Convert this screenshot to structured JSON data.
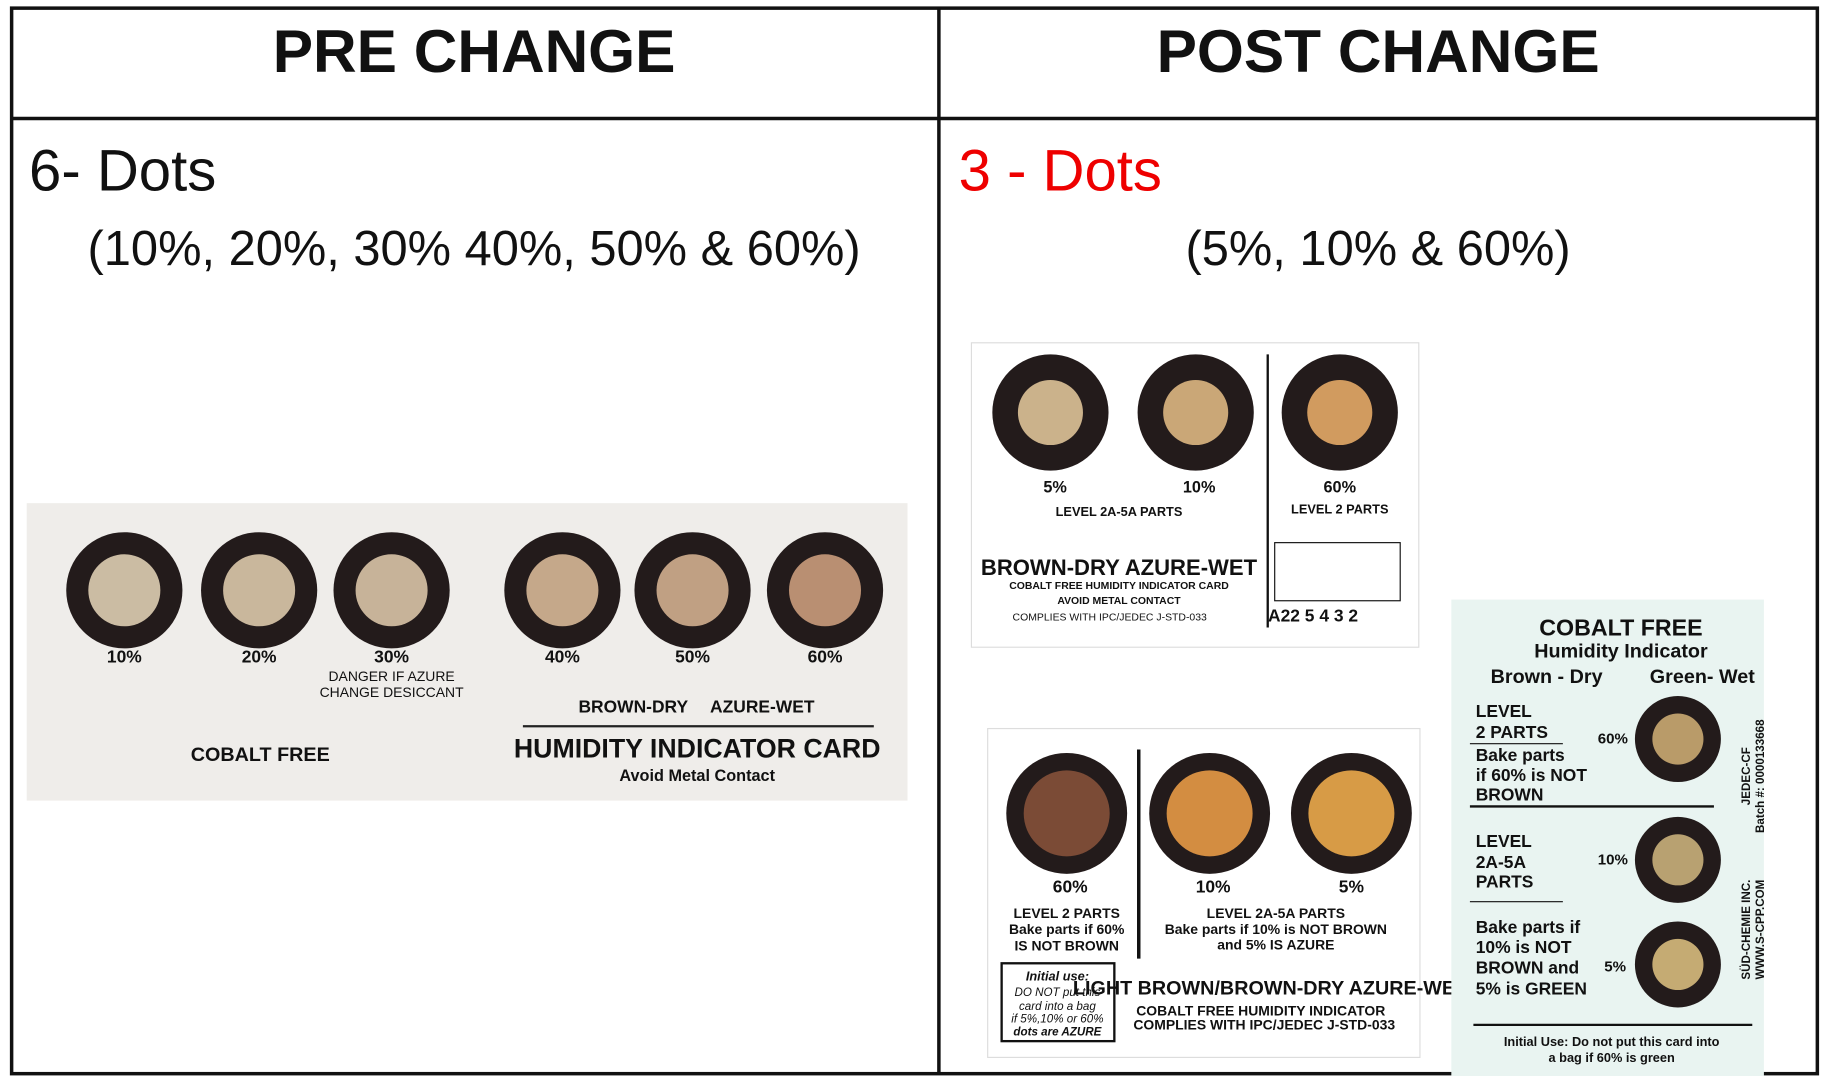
{
  "header": {
    "left": "PRE CHANGE",
    "right": "POST CHANGE"
  },
  "pre": {
    "title": "6- Dots",
    "subtitle": "(10%, 20%, 30% 40%, 50% & 60%)",
    "card": {
      "dots": [
        "10%",
        "20%",
        "30%",
        "40%",
        "50%",
        "60%"
      ],
      "warning": [
        "DANGER IF AZURE",
        "CHANGE DESICCANT"
      ],
      "cobalt": "COBALT FREE",
      "legend": [
        "BROWN-DRY",
        "AZURE-WET"
      ],
      "name": "HUMIDITY INDICATOR CARD",
      "note": "Avoid Metal Contact"
    }
  },
  "post": {
    "title": "3 - Dots",
    "subtitle": "(5%, 10% & 60%)",
    "card1": {
      "dots": [
        "5%",
        "10%",
        "60%"
      ],
      "level_a": "LEVEL 2A-5A PARTS",
      "level_b": "LEVEL 2 PARTS",
      "legend": "BROWN-DRY  AZURE-WET",
      "name": "COBALT FREE HUMIDITY INDICATOR CARD",
      "note": "AVOID METAL CONTACT",
      "complies": "COMPLIES WITH IPC/JEDEC J-STD-033",
      "code": "A22 5 4 3 2"
    },
    "card2": {
      "dots": [
        "60%",
        "10%",
        "5%"
      ],
      "level_b": [
        "LEVEL 2 PARTS",
        "Bake parts if 60%",
        "IS NOT BROWN"
      ],
      "level_a": [
        "LEVEL 2A-5A PARTS",
        "Bake parts if 10% is NOT BROWN",
        "and 5% IS AZURE"
      ],
      "box": [
        "Initial use:",
        "DO NOT put this",
        "card into a bag",
        "if 5%,10% or 60%",
        "dots are AZURE"
      ],
      "legend": "LIGHT BROWN/BROWN-DRY AZURE-WET",
      "name": "COBALT FREE HUMIDITY INDICATOR",
      "complies": "COMPLIES WITH IPC/JEDEC J-STD-033"
    },
    "card3": {
      "title": "COBALT FREE",
      "subtitle": "Humidity Indicator",
      "dry": "Brown - Dry",
      "wet": "Green- Wet",
      "dots": [
        "60%",
        "10%",
        "5%"
      ],
      "level_b": [
        "LEVEL",
        "2 PARTS",
        "Bake parts",
        "if 60% is NOT",
        "BROWN"
      ],
      "level_a": [
        "LEVEL",
        "2A-5A",
        "PARTS"
      ],
      "bake": [
        "Bake parts if",
        "10% is NOT",
        "BROWN and",
        "5%  is GREEN"
      ],
      "initial": [
        "Initial Use: Do not put this card into",
        "a bag if 60% is green"
      ],
      "side_a": [
        "JEDEC-CF",
        "Batch #: 0000133668"
      ],
      "side_b": [
        "SÜD-CHEMIE INC.",
        "WWW.S-CPP.COM"
      ]
    }
  }
}
